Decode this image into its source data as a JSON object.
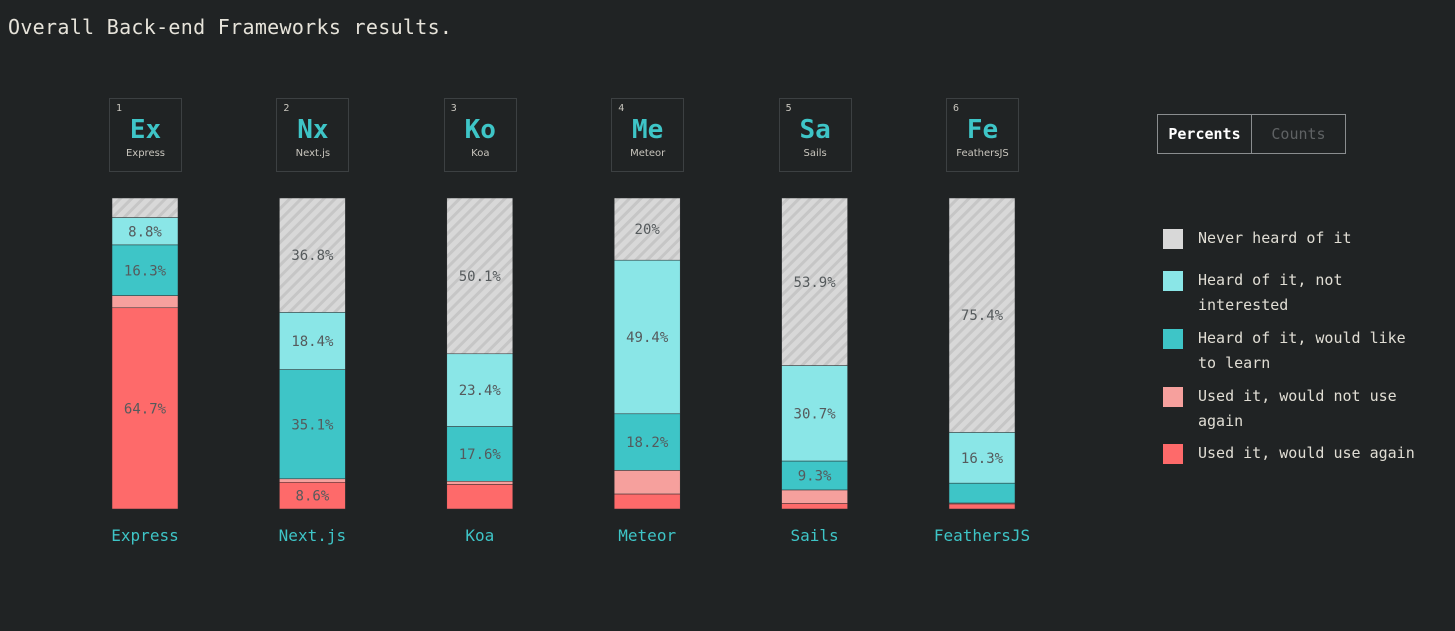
{
  "title": "Overall Back-end Frameworks results.",
  "toggle": {
    "percents_label": "Percents",
    "counts_label": "Counts",
    "selected": "Percents"
  },
  "colors": {
    "never": "#d8d8d8",
    "interested_not": "#8ae6e7",
    "would_learn": "#3ec5c7",
    "not_again": "#f6a09d",
    "would_use": "#fe6a6a"
  },
  "legend": [
    {
      "key": "never",
      "label": "Never heard of it"
    },
    {
      "key": "interested_not",
      "label": "Heard of it, not interested"
    },
    {
      "key": "would_learn",
      "label": "Heard of it, would like to learn"
    },
    {
      "key": "not_again",
      "label": "Used it, would not use again"
    },
    {
      "key": "would_use",
      "label": "Used it, would use again"
    }
  ],
  "frameworks": [
    {
      "rank": "1",
      "symbol": "Ex",
      "name": "Express",
      "label": "Express"
    },
    {
      "rank": "2",
      "symbol": "Nx",
      "name": "Next.js",
      "label": "Next.js"
    },
    {
      "rank": "3",
      "symbol": "Ko",
      "name": "Koa",
      "label": "Koa"
    },
    {
      "rank": "4",
      "symbol": "Me",
      "name": "Meteor",
      "label": "Meteor"
    },
    {
      "rank": "5",
      "symbol": "Sa",
      "name": "Sails",
      "label": "Sails"
    },
    {
      "rank": "6",
      "symbol": "Fe",
      "name": "FeathersJS",
      "label": "FeathersJS"
    }
  ],
  "chart_data": {
    "type": "bar",
    "stacked": true,
    "unit": "%",
    "categories": [
      "Express",
      "Next.js",
      "Koa",
      "Meteor",
      "Sails",
      "FeathersJS"
    ],
    "series": [
      {
        "name": "Never heard of it",
        "key": "never",
        "values": [
          6.3,
          36.8,
          50.1,
          20,
          53.9,
          75.4
        ]
      },
      {
        "name": "Heard of it, not interested",
        "key": "interested_not",
        "values": [
          8.8,
          18.4,
          23.4,
          49.4,
          30.7,
          16.3
        ]
      },
      {
        "name": "Heard of it, would like to learn",
        "key": "would_learn",
        "values": [
          16.3,
          35.1,
          17.6,
          18.2,
          9.3,
          6.4
        ]
      },
      {
        "name": "Used it, would not use again",
        "key": "not_again",
        "values": [
          3.9,
          1.1,
          1.0,
          7.6,
          4.3,
          0.3
        ]
      },
      {
        "name": "Used it, would use again",
        "key": "would_use",
        "values": [
          64.7,
          8.6,
          7.9,
          4.8,
          1.8,
          1.6
        ]
      }
    ],
    "labels_shown": [
      [
        "",
        "8.8%",
        "16.3%",
        "",
        "64.7%"
      ],
      [
        "36.8%",
        "18.4%",
        "35.1%",
        "",
        "8.6%"
      ],
      [
        "50.1%",
        "23.4%",
        "17.6%",
        "",
        ""
      ],
      [
        "20%",
        "49.4%",
        "18.2%",
        "",
        ""
      ],
      [
        "53.9%",
        "30.7%",
        "9.3%",
        "",
        ""
      ],
      [
        "75.4%",
        "16.3%",
        "",
        "",
        ""
      ]
    ],
    "ylim": [
      0,
      100
    ],
    "grid": false,
    "legend_position": "right"
  }
}
